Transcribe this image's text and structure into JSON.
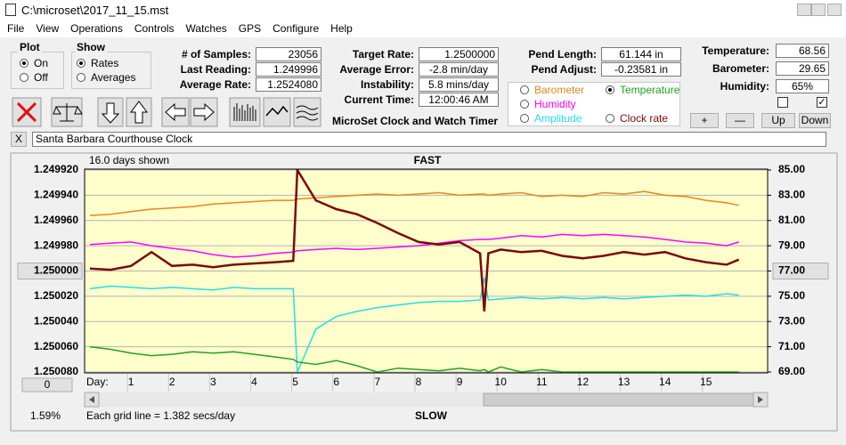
{
  "window": {
    "title": "C:\\microset\\2017_11_15.mst"
  },
  "menu": [
    "File",
    "View",
    "Operations",
    "Controls",
    "Watches",
    "GPS",
    "Configure",
    "Help"
  ],
  "plot_group": {
    "title": "Plot",
    "options": [
      "On",
      "Off"
    ],
    "selected": 0
  },
  "show_group": {
    "title": "Show",
    "options": [
      "Rates",
      "Averages"
    ],
    "selected": 0
  },
  "fields": [
    {
      "label": "# of Samples:",
      "value": "23056"
    },
    {
      "label": "Last Reading:",
      "value": "1.249996"
    },
    {
      "label": "Average Rate:",
      "value": "1.2524080"
    },
    {
      "label": "Target Rate:",
      "value": "1.2500000"
    },
    {
      "label": "Average Error:",
      "value": "-2.8 min/day"
    },
    {
      "label": "Instability:",
      "value": "5.8 mins/day"
    },
    {
      "label": "Current Time:",
      "value": "12:00:46 AM"
    },
    {
      "label": "Pend Length:",
      "value": "61.144 in"
    },
    {
      "label": "Pend Adjust:",
      "value": "-0.23581 in"
    },
    {
      "label": "Temperature:",
      "value": "68.56"
    },
    {
      "label": "Barometer:",
      "value": "29.65"
    },
    {
      "label": "Humidity:",
      "value": "65%"
    }
  ],
  "app_name": "MicroSet Clock and Watch Timer",
  "sensor_buttons": [
    "+",
    "—",
    "Up",
    "Down"
  ],
  "checkboxes": [
    false,
    true
  ],
  "close_button": "X",
  "clock_name": "Santa Barbara Courthouse Clock",
  "chart_data": {
    "type": "line",
    "top_label": "FAST",
    "bottom_label": "SLOW",
    "days_shown": "16.0 days shown",
    "grid_note": "Each grid line = 1.382 secs/day",
    "x_label": "Day:",
    "zoom_label": "1.59%",
    "reset_button": "0",
    "x": [
      0,
      0.5,
      1,
      1.5,
      2,
      2.5,
      3,
      3.5,
      4,
      4.5,
      4.95,
      5.05,
      5.5,
      6,
      6.5,
      7,
      7.5,
      8,
      8.5,
      9,
      9.5,
      9.6,
      9.7,
      10,
      10.5,
      11,
      11.5,
      12,
      12.5,
      13,
      13.5,
      14,
      14.5,
      15,
      15.5,
      15.8
    ],
    "xlim": [
      -0.13,
      16.5
    ],
    "xticks": [
      1,
      2,
      3,
      4,
      5,
      6,
      7,
      8,
      9,
      10,
      11,
      12,
      13,
      14,
      15
    ],
    "ylim": [
      1.25008,
      1.24992
    ],
    "yticks": [
      {
        "value": 1.24992,
        "label": "1.249920"
      },
      {
        "value": 1.24994,
        "label": "1.249940"
      },
      {
        "value": 1.24996,
        "label": "1.249960"
      },
      {
        "value": 1.24998,
        "label": "1.249980"
      },
      {
        "value": 1.25,
        "label": "1.250000"
      },
      {
        "value": 1.25002,
        "label": "1.250020"
      },
      {
        "value": 1.25004,
        "label": "1.250040"
      },
      {
        "value": 1.25006,
        "label": "1.250060"
      },
      {
        "value": 1.25008,
        "label": "1.250080"
      }
    ],
    "y2lim": [
      69,
      85
    ],
    "y2ticks": [
      {
        "value": 85,
        "label": "85.00"
      },
      {
        "value": 83,
        "label": "83.00"
      },
      {
        "value": 81,
        "label": "81.00"
      },
      {
        "value": 79,
        "label": "79.00"
      },
      {
        "value": 77,
        "label": "77.00"
      },
      {
        "value": 75,
        "label": "75.00"
      },
      {
        "value": 73,
        "label": "73.00"
      },
      {
        "value": 71,
        "label": "71.00"
      },
      {
        "value": 69,
        "label": "69.00"
      }
    ],
    "grid": true,
    "selected_series": 3,
    "series": [
      {
        "name": "Barometer",
        "color": "#e8861a",
        "axis": "y2",
        "values": [
          81.4,
          81.5,
          81.7,
          81.9,
          82.0,
          82.1,
          82.3,
          82.4,
          82.5,
          82.6,
          82.6,
          82.7,
          82.8,
          82.9,
          83.0,
          83.1,
          83.0,
          83.1,
          83.2,
          83.0,
          83.1,
          83.1,
          83.0,
          83.1,
          83.2,
          82.9,
          83.0,
          82.9,
          83.2,
          83.1,
          83.3,
          83.0,
          82.9,
          82.6,
          82.4,
          82.2
        ]
      },
      {
        "name": "Humidity",
        "color": "#ff00ff",
        "axis": "y2",
        "values": [
          79.1,
          79.2,
          79.3,
          79.0,
          78.8,
          78.6,
          78.3,
          78.1,
          78.2,
          78.4,
          78.5,
          78.6,
          78.7,
          78.8,
          78.7,
          78.8,
          78.9,
          79.0,
          79.2,
          79.4,
          79.5,
          79.5,
          79.5,
          79.6,
          79.8,
          79.7,
          79.9,
          79.8,
          79.9,
          79.8,
          79.7,
          79.5,
          79.3,
          79.2,
          79.0,
          79.3
        ]
      },
      {
        "name": "Amplitude",
        "color": "#22dded",
        "axis": "y2",
        "values": [
          75.6,
          75.8,
          75.7,
          75.6,
          75.7,
          75.6,
          75.5,
          75.7,
          75.6,
          75.6,
          75.6,
          69.0,
          72.4,
          73.4,
          73.8,
          74.1,
          74.3,
          74.5,
          74.6,
          74.6,
          74.7,
          76.5,
          74.7,
          74.8,
          74.9,
          74.8,
          74.9,
          74.8,
          74.9,
          74.8,
          74.9,
          75.0,
          75.1,
          75.0,
          75.2,
          75.1
        ]
      },
      {
        "name": "Temperature",
        "color": "#22a022",
        "axis": "y2",
        "values": [
          71.0,
          70.8,
          70.5,
          70.3,
          70.4,
          70.6,
          70.5,
          70.6,
          70.4,
          70.2,
          70.0,
          69.8,
          69.6,
          69.9,
          69.5,
          69.0,
          69.3,
          69.2,
          69.1,
          69.3,
          69.1,
          69.2,
          69.0,
          69.4,
          69.0,
          69.2,
          69.0,
          69.0,
          69.0,
          69.0,
          69.0,
          69.0,
          69.0,
          69.0,
          69.0,
          69.0
        ]
      },
      {
        "name": "Clock rate",
        "color": "#7a0a0a",
        "values": [
          1.249998,
          1.249999,
          1.249996,
          1.249985,
          1.249996,
          1.249995,
          1.249997,
          1.249995,
          1.249994,
          1.249993,
          1.249992,
          1.24992,
          1.249944,
          1.249951,
          1.249955,
          1.249962,
          1.24997,
          1.249977,
          1.249979,
          1.249977,
          1.249986,
          1.250032,
          1.249986,
          1.249983,
          1.249985,
          1.249984,
          1.249988,
          1.24999,
          1.249988,
          1.249985,
          1.249987,
          1.249985,
          1.24999,
          1.249993,
          1.249995,
          1.249991
        ]
      }
    ]
  }
}
